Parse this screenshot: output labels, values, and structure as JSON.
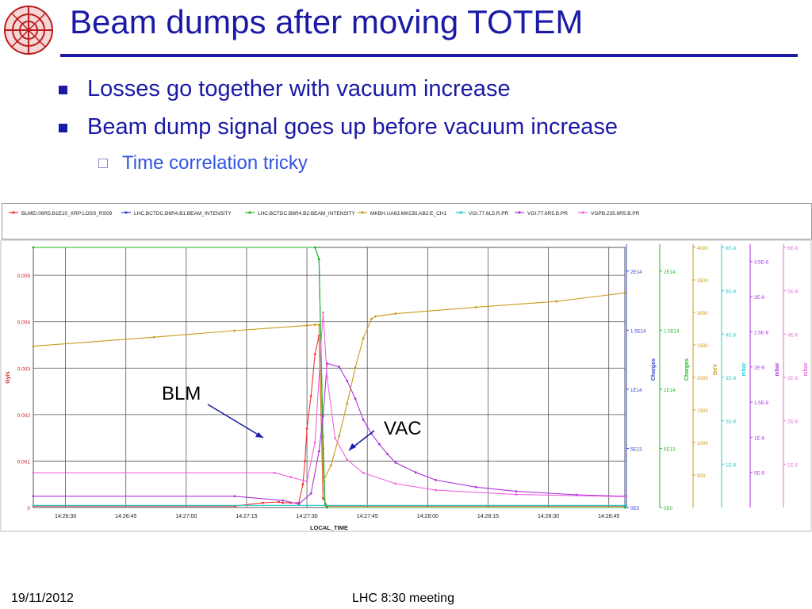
{
  "slide": {
    "title": "Beam dumps after moving TOTEM",
    "bullets": [
      "Losses go together with vacuum increase",
      "Beam dump signal goes up before vacuum increase"
    ],
    "sub_bullet": "Time correlation tricky",
    "footer_date": "19/11/2012",
    "footer_center": "LHC 8:30 meeting",
    "title_color": "#1a1aa6",
    "sub_color": "#3355dd"
  },
  "annotations": {
    "blm": "BLM",
    "vac": "VAC"
  },
  "chart_data": {
    "type": "line",
    "xlabel": "LOCAL_TIME",
    "x_ticks": [
      "14:26:30",
      "14:26:45",
      "14:27:00",
      "14:27:15",
      "14:27:30",
      "14:27:45",
      "14:28:00",
      "14:28:15",
      "14:28:30",
      "14:28:45"
    ],
    "xlim": [
      "14:26:22",
      "14:28:49"
    ],
    "grid": true,
    "legend": [
      {
        "name": "BLMEI.06R5.B1E10_XRP:LOSS_RS09",
        "color": "#ee3333"
      },
      {
        "name": "LHC.BCTDC.B6R4.B1:BEAM_INTENSITY",
        "color": "#3344cc"
      },
      {
        "name": "LHC.BCTDC.B6R4.B2:BEAM_INTENSITY",
        "color": "#22bb22"
      },
      {
        "name": "MKBH.UA63.MKCBI.AB2:E_CH1",
        "color": "#c89a1a"
      },
      {
        "name": "VGI.77.6L5.R.PR",
        "color": "#22cccc"
      },
      {
        "name": "VGI.77.6R5.B.PR",
        "color": "#aa33dd"
      },
      {
        "name": "VGPB.235.6R5.B.PR",
        "color": "#ee66dd"
      }
    ],
    "axes": [
      {
        "id": "gys",
        "label": "Gy/s",
        "color": "#cc2222",
        "ticks": [
          "0",
          "0.001",
          "0.002",
          "0.003",
          "0.004",
          "0.005"
        ],
        "ylim": [
          0,
          0.0056
        ]
      },
      {
        "id": "q1",
        "label": "Charges",
        "color": "#3344cc",
        "ticks": [
          "0E0",
          "5E13",
          "1E14",
          "1.5E14",
          "2E14"
        ],
        "ylim": [
          0,
          220000000000000.0
        ]
      },
      {
        "id": "q2",
        "label": "Charges",
        "color": "#22bb22",
        "ticks": [
          "0E0",
          "5E13",
          "1E14",
          "1.5E14",
          "2E14"
        ],
        "ylim": [
          0,
          220000000000000.0
        ]
      },
      {
        "id": "gev",
        "label": "GeV",
        "color": "#c89a1a",
        "ticks": [
          "500",
          "1000",
          "1500",
          "2000",
          "2500",
          "3000",
          "3500",
          "4000"
        ],
        "ylim": [
          0,
          4000
        ]
      },
      {
        "id": "vgi6l",
        "label": "mbar",
        "color": "#22cccc",
        "ticks": [
          "1E-8",
          "2E-8",
          "3E-8",
          "4E-8",
          "5E-8",
          "6E-8"
        ],
        "ylim": [
          0,
          6e-08
        ]
      },
      {
        "id": "vgi6r",
        "label": "mbar",
        "color": "#aa33dd",
        "ticks": [
          "5E-9",
          "1E-8",
          "1.5E-8",
          "2E-8",
          "2.5E-8",
          "3E-8",
          "3.5E-8"
        ],
        "ylim": [
          0,
          3.7e-08
        ]
      },
      {
        "id": "vgpb",
        "label": "mbar",
        "color": "#ee66dd",
        "ticks": [
          "1E-8",
          "2E-8",
          "3E-8",
          "4E-8",
          "5E-8",
          "6E-8"
        ],
        "ylim": [
          0,
          6e-08
        ]
      }
    ],
    "series": [
      {
        "name": "BLMEI.06R5.B1E10_XRP:LOSS_RS09",
        "axis": "gys",
        "color": "#ee3333",
        "points": [
          [
            0,
            3e-05
          ],
          [
            50,
            3e-05
          ],
          [
            57,
            0.0001
          ],
          [
            61,
            0.00012
          ],
          [
            62,
            0.0001
          ],
          [
            64,
            0.0001
          ],
          [
            66,
            0.0001
          ],
          [
            67,
            0.0005
          ],
          [
            67.5,
            0.001
          ],
          [
            68,
            0.0017
          ],
          [
            69,
            0.0024
          ],
          [
            70,
            0.0033
          ],
          [
            71,
            0.0037
          ],
          [
            71.5,
            0.002
          ],
          [
            72,
            0.0002
          ],
          [
            73,
            3e-05
          ],
          [
            147,
            3e-05
          ]
        ]
      },
      {
        "name": "LHC.BCTDC.B6R4.B1:BEAM_INTENSITY",
        "axis": "q1",
        "color": "#3344cc",
        "points": [
          [
            0,
            220000000000000.0
          ],
          [
            70,
            220000000000000.0
          ],
          [
            71,
            210000000000000.0
          ],
          [
            72,
            50000000000000.0
          ],
          [
            72.5,
            2000000000000.0
          ],
          [
            73,
            0.0
          ],
          [
            147,
            0.0
          ]
        ]
      },
      {
        "name": "LHC.BCTDC.B6R4.B2:BEAM_INTENSITY",
        "axis": "q2",
        "color": "#22bb22",
        "points": [
          [
            0,
            220000000000000.0
          ],
          [
            70,
            220000000000000.0
          ],
          [
            71,
            210000000000000.0
          ],
          [
            72,
            60000000000000.0
          ],
          [
            72.5,
            2000000000000.0
          ],
          [
            73,
            0.0
          ],
          [
            147,
            0.0
          ]
        ]
      },
      {
        "name": "MKBH.UA63.MKCBI.AB2:E_CH1",
        "axis": "gev",
        "color": "#c89a1a",
        "points": [
          [
            0,
            2480
          ],
          [
            30,
            2620
          ],
          [
            50,
            2720
          ],
          [
            68,
            2800
          ],
          [
            70,
            2810
          ],
          [
            71,
            2810
          ],
          [
            72,
            400
          ],
          [
            74,
            650
          ],
          [
            76,
            1100
          ],
          [
            78,
            1600
          ],
          [
            80,
            2150
          ],
          [
            82,
            2600
          ],
          [
            84,
            2900
          ],
          [
            85,
            2940
          ],
          [
            90,
            2980
          ],
          [
            110,
            3080
          ],
          [
            130,
            3170
          ],
          [
            147,
            3300
          ]
        ]
      },
      {
        "name": "VGI.77.6L5.R.PR",
        "axis": "vgi6l",
        "color": "#22cccc",
        "points": [
          [
            0,
            5e-10
          ],
          [
            147,
            5e-10
          ]
        ]
      },
      {
        "name": "VGI.77.6R5.B.PR",
        "axis": "vgi6r",
        "color": "#aa33dd",
        "points": [
          [
            0,
            1.6e-09
          ],
          [
            50,
            1.6e-09
          ],
          [
            62,
            1e-09
          ],
          [
            66,
            5e-10
          ],
          [
            69,
            2e-09
          ],
          [
            71,
            8e-09
          ],
          [
            72,
            1.3e-08
          ],
          [
            73,
            2.05e-08
          ],
          [
            76,
            2e-08
          ],
          [
            78,
            1.8e-08
          ],
          [
            80,
            1.55e-08
          ],
          [
            82,
            1.25e-08
          ],
          [
            84,
            1.05e-08
          ],
          [
            86,
            9e-09
          ],
          [
            88,
            7.6e-09
          ],
          [
            90,
            6.4e-09
          ],
          [
            95,
            5e-09
          ],
          [
            100,
            3.9e-09
          ],
          [
            110,
            2.9e-09
          ],
          [
            120,
            2.3e-09
          ],
          [
            135,
            1.8e-09
          ],
          [
            147,
            1.6e-09
          ]
        ]
      },
      {
        "name": "VGPB.235.6R5.B.PR",
        "axis": "vgpb",
        "color": "#ee66dd",
        "points": [
          [
            0,
            8e-09
          ],
          [
            60,
            8e-09
          ],
          [
            64,
            7e-09
          ],
          [
            68,
            6e-09
          ],
          [
            70,
            1.5e-08
          ],
          [
            72,
            4.5e-08
          ],
          [
            73,
            3e-08
          ],
          [
            75,
            1.6e-08
          ],
          [
            78,
            1.1e-08
          ],
          [
            82,
            8e-09
          ],
          [
            90,
            5.5e-09
          ],
          [
            100,
            4e-09
          ],
          [
            120,
            3e-09
          ],
          [
            147,
            2.5e-09
          ]
        ]
      }
    ]
  }
}
